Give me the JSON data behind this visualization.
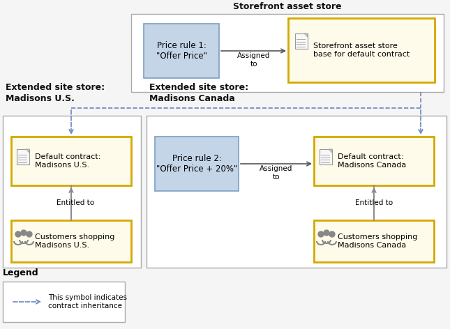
{
  "bg_color": "#f5f5f5",
  "title_storefront": "Storefront asset store",
  "title_us": "Extended site store:\nMadisons U.S.",
  "title_canada": "Extended site store:\nMadisons Canada",
  "legend_title": "Legend",
  "legend_text": "This symbol indicates\ncontract inheritance",
  "price_rule1_text": "Price rule 1:\n\"Offer Price\"",
  "price_rule2_text": "Price rule 2:\n\"Offer Price + 20%\"",
  "storefront_contract_text": "Storefront asset store\nbase for default contract",
  "default_us_text": "Default contract:\nMadisons U.S.",
  "customers_us_text": "Customers shopping\nMadisons U.S.",
  "default_canada_text": "Default contract:\nMadisons Canada",
  "customers_canada_text": "Customers shopping\nMadisons Canada",
  "blue_box_fill": "#c5d5e8",
  "blue_box_edge": "#7a9fc0",
  "yellow_box_fill": "#fffbea",
  "yellow_box_edge": "#d4a800",
  "outer_box_fill": "#ffffff",
  "outer_box_edge": "#aaaaaa",
  "arrow_dashed_color": "#6688bb",
  "arrow_solid_color": "#555555",
  "assigned_to_text": "Assigned\nto",
  "entitled_to_text": "Entitled to"
}
